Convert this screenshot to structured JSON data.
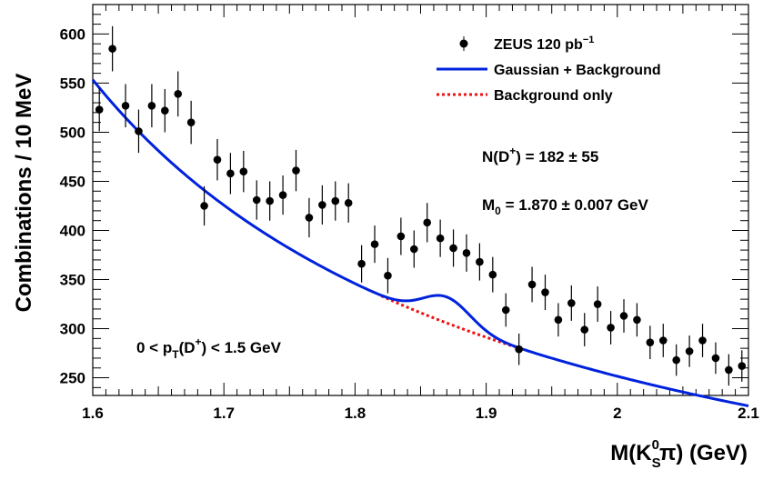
{
  "chart_data": {
    "type": "scatter",
    "xlabel": {
      "main": "M(K",
      "sup": "0",
      "sub": "S",
      "tail": "π) (GeV)"
    },
    "ylabel": "Combinations / 10 MeV",
    "xlim": [
      1.6,
      2.1
    ],
    "ylim": [
      232,
      630
    ],
    "x_ticks": [
      {
        "value": 1.6,
        "label": "1.6"
      },
      {
        "value": 1.7,
        "label": "1.7"
      },
      {
        "value": 1.8,
        "label": "1.8"
      },
      {
        "value": 1.9,
        "label": "1.9"
      },
      {
        "value": 2.0,
        "label": "2"
      },
      {
        "value": 2.1,
        "label": "2.1"
      }
    ],
    "y_ticks": [
      {
        "value": 250,
        "label": "250"
      },
      {
        "value": 300,
        "label": "300"
      },
      {
        "value": 350,
        "label": "350"
      },
      {
        "value": 400,
        "label": "400"
      },
      {
        "value": 450,
        "label": "450"
      },
      {
        "value": 500,
        "label": "500"
      },
      {
        "value": 550,
        "label": "550"
      },
      {
        "value": 600,
        "label": "600"
      }
    ],
    "grid": false,
    "legend_placement": "top-right",
    "legend": [
      {
        "key": "data",
        "label": "ZEUS 120 pb",
        "sup": "−1"
      },
      {
        "key": "fit",
        "label": "Gaussian + Background"
      },
      {
        "key": "bkg",
        "label": "Background only"
      }
    ],
    "annotations": {
      "n_dplus": {
        "pre": "N(D",
        "sup": "+",
        "post": ") = 182 ± 55"
      },
      "mass": {
        "pre": "M",
        "sub": "0",
        "post": " = 1.870 ± 0.007 GeV"
      },
      "pt_range": {
        "pre": "0 < p",
        "sub": "T",
        "mid": "(D",
        "sup": "+",
        "post": ") < 1.5 GeV"
      }
    },
    "colors": {
      "data": "#000000",
      "fit": "#0022dd",
      "bkg": "#ee1111"
    },
    "series": [
      {
        "name": "ZEUS 120 pb−1",
        "type": "points_with_errors",
        "x": [
          1.605,
          1.615,
          1.625,
          1.635,
          1.645,
          1.655,
          1.665,
          1.675,
          1.685,
          1.695,
          1.705,
          1.715,
          1.725,
          1.735,
          1.745,
          1.755,
          1.765,
          1.775,
          1.785,
          1.795,
          1.805,
          1.815,
          1.825,
          1.835,
          1.845,
          1.855,
          1.865,
          1.875,
          1.885,
          1.895,
          1.905,
          1.915,
          1.925,
          1.935,
          1.945,
          1.955,
          1.965,
          1.975,
          1.985,
          1.995,
          2.005,
          2.015,
          2.025,
          2.035,
          2.045,
          2.055,
          2.065,
          2.075,
          2.085,
          2.095
        ],
        "y": [
          523,
          585,
          527,
          501,
          527,
          522,
          539,
          510,
          425,
          472,
          458,
          460,
          431,
          430,
          436,
          461,
          413,
          426,
          430,
          428,
          366,
          386,
          354,
          394,
          381,
          408,
          392,
          382,
          377,
          368,
          355,
          319,
          279,
          345,
          337,
          309,
          326,
          299,
          325,
          301,
          313,
          309,
          286,
          288,
          268,
          277,
          288,
          270,
          258,
          262
        ],
        "yerr": [
          22,
          23,
          22,
          22,
          22,
          22,
          23,
          22,
          20,
          21,
          21,
          21,
          20,
          20,
          20,
          21,
          20,
          20,
          20,
          20,
          19,
          19,
          18,
          19,
          19,
          20,
          19,
          19,
          19,
          19,
          18,
          17,
          16,
          18,
          18,
          17,
          18,
          17,
          18,
          17,
          17,
          17,
          17,
          17,
          16,
          16,
          17,
          16,
          16,
          16
        ]
      },
      {
        "name": "Gaussian + Background",
        "type": "curve",
        "model": {
          "a": 553.4,
          "b": 0.3,
          "x0": 1.6,
          "peak_amp": 26.5,
          "mean": 1.87,
          "sigma": 0.018
        }
      },
      {
        "name": "Background only",
        "type": "curve_dashed",
        "range": [
          1.82,
          1.922
        ],
        "model": {
          "a": 553.4,
          "b": 0.3,
          "x0": 1.6
        }
      }
    ]
  }
}
